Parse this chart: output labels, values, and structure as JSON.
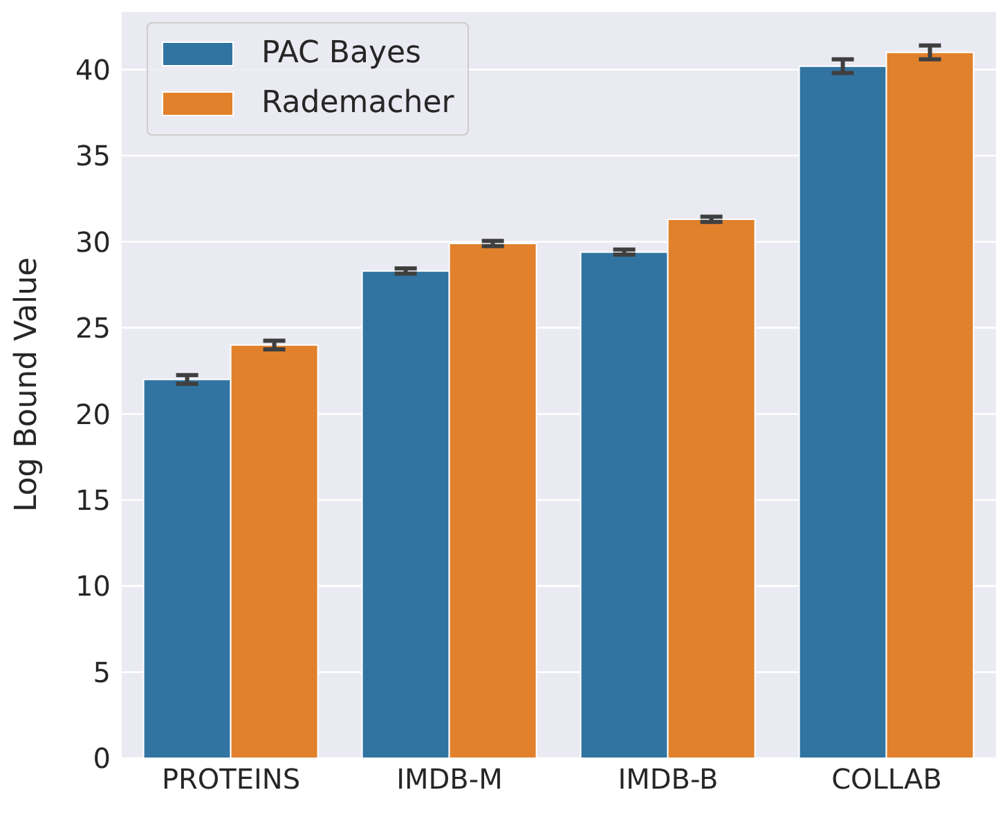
{
  "chart_data": {
    "type": "bar",
    "ylabel": "Log Bound Value",
    "categories": [
      "PROTEINS",
      "IMDB-M",
      "IMDB-B",
      "COLLAB"
    ],
    "series": [
      {
        "name": "PAC Bayes",
        "color": "#3274a1",
        "values": [
          22.0,
          28.3,
          29.4,
          40.2
        ],
        "errors": [
          0.25,
          0.15,
          0.15,
          0.4
        ]
      },
      {
        "name": "Rademacher",
        "color": "#e1812c",
        "values": [
          24.0,
          29.9,
          31.3,
          41.0
        ],
        "errors": [
          0.25,
          0.15,
          0.15,
          0.4
        ]
      }
    ],
    "ylim": [
      0,
      43.4
    ],
    "yticks": [
      0,
      5,
      10,
      15,
      20,
      25,
      30,
      35,
      40
    ],
    "grid": "y",
    "legend": "top left"
  }
}
